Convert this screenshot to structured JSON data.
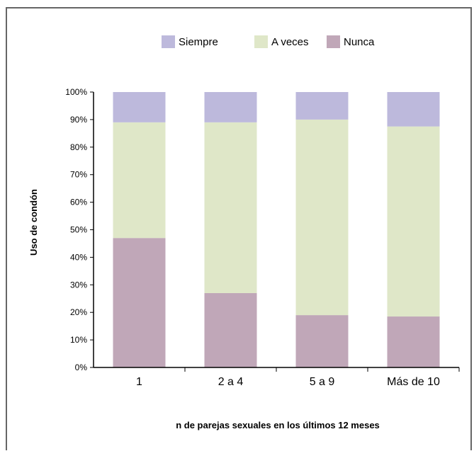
{
  "chart_data": {
    "type": "bar",
    "stacked": true,
    "categories": [
      "1",
      "2 a 4",
      "5 a 9",
      "Más de 10"
    ],
    "series": [
      {
        "name": "Nunca",
        "values": [
          47,
          27,
          19,
          18.5
        ],
        "color": "#c0a7b8"
      },
      {
        "name": "A veces",
        "values": [
          42,
          62,
          71,
          69
        ],
        "color": "#dfe7c8"
      },
      {
        "name": "Siempre",
        "values": [
          11,
          11,
          10,
          12.5
        ],
        "color": "#bdb9dc"
      }
    ],
    "legend_order": [
      "Siempre",
      "A veces",
      "Nunca"
    ],
    "legend_position": "top",
    "ylim": [
      0,
      100
    ],
    "yticks": [
      "0%",
      "10%",
      "20%",
      "30%",
      "40%",
      "50%",
      "60%",
      "70%",
      "80%",
      "90%",
      "100%"
    ],
    "xlabel": "n de parejas sexuales en los últimos 12 meses",
    "ylabel": "Uso de condón",
    "grid": false
  }
}
